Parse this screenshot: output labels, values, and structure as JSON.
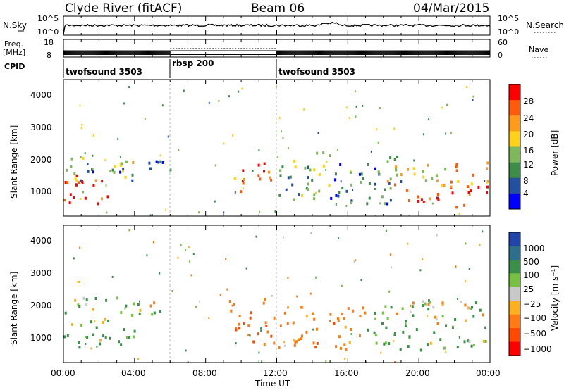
{
  "header": {
    "station": "Clyde River (fitACF)",
    "beam": "Beam 06",
    "date": "04/Mar/2015"
  },
  "top_panels": {
    "nsky_label": "N.Sky",
    "nsky_ticks": [
      "10^5",
      "10^0"
    ],
    "nsearch_ticks": [
      "10^5",
      "10^0"
    ],
    "nsearch_label": "N.Search",
    "freq_label_1": "Freq.",
    "freq_label_2": "[MHz]",
    "freq_ticks": [
      "18",
      "8"
    ],
    "nave_ticks": [
      "60",
      "0"
    ],
    "nave_label": "Nave",
    "cpid_label": "CPID",
    "cpid_segments": [
      {
        "label": "twofsound 3503",
        "start": 0
      },
      {
        "label": "rbsp 200",
        "start": 6
      },
      {
        "label": "twofsound 3503",
        "start": 12
      }
    ]
  },
  "power_panel": {
    "ylabel": "Slant Range [km]",
    "yticks": [
      "4000",
      "3000",
      "2000",
      "1000"
    ],
    "colorbar_label": "Power [dB]",
    "colorbar_ticks": [
      "28",
      "24",
      "20",
      "16",
      "12",
      "8",
      "4"
    ],
    "colors": [
      "#0000ff",
      "#2450a0",
      "#3d8c4a",
      "#7fb85a",
      "#ffd21a",
      "#ff9a1a",
      "#ff5a0a",
      "#ff0000"
    ]
  },
  "velocity_panel": {
    "ylabel": "Slant Range [km]",
    "yticks": [
      "4000",
      "3000",
      "2000",
      "1000"
    ],
    "colorbar_label": "Velocity [m s⁻¹]",
    "colorbar_ticks": [
      "1000",
      "500",
      "100",
      "25",
      "−25",
      "−100",
      "−500",
      "−1000"
    ],
    "colors": [
      "#2244aa",
      "#2d6f8a",
      "#3a8f4a",
      "#77c044",
      "#c8c8c8",
      "#ffb020",
      "#ff7a10",
      "#ff4a00",
      "#ff0000"
    ]
  },
  "xaxis": {
    "ticks": [
      "00:00",
      "04:00",
      "08:00",
      "12:00",
      "16:00",
      "20:00",
      "00:00"
    ],
    "label": "Time UT"
  },
  "chart_data": {
    "type": "heatmap",
    "x_range_hours": [
      0,
      24
    ],
    "y_range_km": [
      180,
      4500
    ],
    "mode_changes_hours": [
      6,
      12
    ],
    "freq_mhz": [
      {
        "from": 0,
        "to": 6,
        "value": 10.5
      },
      {
        "from": 6,
        "to": 12,
        "value": 10.5
      },
      {
        "from": 12,
        "to": 24,
        "value": 10.5
      }
    ],
    "power_regions": [
      {
        "t0": 0.0,
        "t1": 3.0,
        "r0": 600,
        "r1": 1600,
        "db": 26
      },
      {
        "t0": 0.0,
        "t1": 4.0,
        "r0": 1300,
        "r1": 2100,
        "db": 14
      },
      {
        "t0": 1.0,
        "t1": 6.0,
        "r0": 1600,
        "r1": 2000,
        "db": 9
      },
      {
        "t0": 9.3,
        "t1": 10.2,
        "r0": 800,
        "r1": 1500,
        "db": 22
      },
      {
        "t0": 10.0,
        "t1": 12.0,
        "r0": 1200,
        "r1": 2000,
        "db": 24
      },
      {
        "t0": 12.0,
        "t1": 15.0,
        "r0": 700,
        "r1": 2400,
        "db": 12
      },
      {
        "t0": 15.0,
        "t1": 19.0,
        "r0": 600,
        "r1": 2100,
        "db": 10
      },
      {
        "t0": 19.0,
        "t1": 24.0,
        "r0": 500,
        "r1": 1200,
        "db": 27
      },
      {
        "t0": 18.0,
        "t1": 24.0,
        "r0": 1200,
        "r1": 2000,
        "db": 20
      }
    ],
    "velocity_regions": [
      {
        "t0": 0.0,
        "t1": 4.0,
        "r0": 600,
        "r1": 1600,
        "v": 150
      },
      {
        "t0": 0.0,
        "t1": 6.0,
        "r0": 1700,
        "r1": 2300,
        "v": 0
      },
      {
        "t0": 9.3,
        "t1": 12.0,
        "r0": 800,
        "r1": 2200,
        "v": -400
      },
      {
        "t0": 12.0,
        "t1": 17.0,
        "r0": 600,
        "r1": 2000,
        "v": -300
      },
      {
        "t0": 17.0,
        "t1": 24.0,
        "r0": 600,
        "r1": 1400,
        "v": 200
      },
      {
        "t0": 17.0,
        "t1": 24.0,
        "r0": 1400,
        "r1": 2200,
        "v": 0
      }
    ]
  }
}
